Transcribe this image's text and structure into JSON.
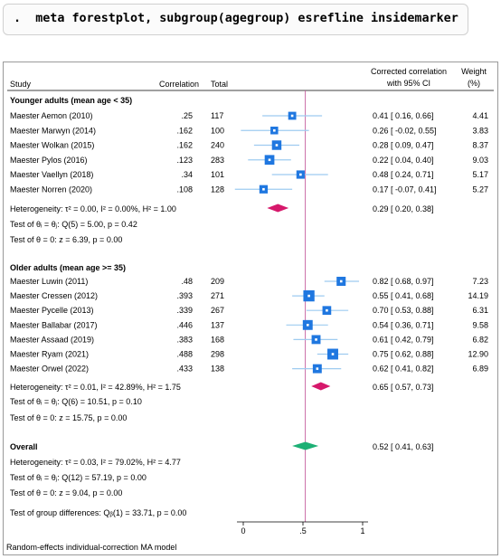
{
  "command": {
    "prompt": ".",
    "text": "meta forestplot, subgroup(agegroup) esrefline insidemarker"
  },
  "header": {
    "study": "Study",
    "correlation": "Correlation",
    "total": "Total",
    "ci_line1": "Corrected correlation",
    "ci_line2": "with 95% CI",
    "weight_line1": "Weight",
    "weight_line2": "(%)"
  },
  "groups": [
    {
      "title": "Younger adults (mean age < 35)",
      "studies": [
        {
          "name": "Maester Aemon (2010)",
          "r": ".25",
          "n": "117",
          "ci": "0.41 [  0.16,  0.66]",
          "weight": "4.41",
          "est": 0.41,
          "lo": 0.16,
          "hi": 0.66,
          "w": 4.41
        },
        {
          "name": "Maester Marwyn (2014)",
          "r": ".162",
          "n": "100",
          "ci": "0.26 [ -0.02,  0.55]",
          "weight": "3.83",
          "est": 0.26,
          "lo": -0.02,
          "hi": 0.55,
          "w": 3.83
        },
        {
          "name": "Maester Wolkan (2015)",
          "r": ".162",
          "n": "240",
          "ci": "0.28 [  0.09,  0.47]",
          "weight": "8.37",
          "est": 0.28,
          "lo": 0.09,
          "hi": 0.47,
          "w": 8.37
        },
        {
          "name": "Maester Pylos (2016)",
          "r": ".123",
          "n": "283",
          "ci": "0.22 [  0.04,  0.40]",
          "weight": "9.03",
          "est": 0.22,
          "lo": 0.04,
          "hi": 0.4,
          "w": 9.03
        },
        {
          "name": "Maester Vaellyn (2018)",
          "r": ".34",
          "n": "101",
          "ci": "0.48 [  0.24,  0.71]",
          "weight": "5.17",
          "est": 0.48,
          "lo": 0.24,
          "hi": 0.71,
          "w": 5.17
        },
        {
          "name": "Maester Norren (2020)",
          "r": ".108",
          "n": "128",
          "ci": "0.17 [ -0.07,  0.41]",
          "weight": "5.27",
          "est": 0.17,
          "lo": -0.07,
          "hi": 0.41,
          "w": 5.27
        }
      ],
      "heterogeneity": "Heterogeneity: τ² = 0.00, I² = 0.00%, H² = 1.00",
      "pooled_ci": "0.29 [  0.20,  0.38]",
      "pooled": {
        "est": 0.29,
        "lo": 0.2,
        "hi": 0.38
      },
      "q_test": "Test of θᵢ = θⱼ: Q(5) = 5.00, p = 0.42",
      "z_test": "Test of θ = 0: z = 6.39, p = 0.00"
    },
    {
      "title": "Older adults (mean age >= 35)",
      "studies": [
        {
          "name": "Maester Luwin (2011)",
          "r": ".48",
          "n": "209",
          "ci": "0.82 [  0.68,  0.97]",
          "weight": "7.23",
          "est": 0.82,
          "lo": 0.68,
          "hi": 0.97,
          "w": 7.23
        },
        {
          "name": "Maester Cressen (2012)",
          "r": ".393",
          "n": "271",
          "ci": "0.55 [  0.41,  0.68]",
          "weight": "14.19",
          "est": 0.55,
          "lo": 0.41,
          "hi": 0.68,
          "w": 14.19
        },
        {
          "name": "Maester Pycelle (2013)",
          "r": ".339",
          "n": "267",
          "ci": "0.70 [  0.53,  0.88]",
          "weight": "6.31",
          "est": 0.7,
          "lo": 0.53,
          "hi": 0.88,
          "w": 6.31
        },
        {
          "name": "Maester Ballabar (2017)",
          "r": ".446",
          "n": "137",
          "ci": "0.54 [  0.36,  0.71]",
          "weight": "9.58",
          "est": 0.54,
          "lo": 0.36,
          "hi": 0.71,
          "w": 9.58
        },
        {
          "name": "Maester Assaad (2019)",
          "r": ".383",
          "n": "168",
          "ci": "0.61 [  0.42,  0.79]",
          "weight": "6.82",
          "est": 0.61,
          "lo": 0.42,
          "hi": 0.79,
          "w": 6.82
        },
        {
          "name": "Maester Ryam (2021)",
          "r": ".488",
          "n": "298",
          "ci": "0.75 [  0.62,  0.88]",
          "weight": "12.90",
          "est": 0.75,
          "lo": 0.62,
          "hi": 0.88,
          "w": 12.9
        },
        {
          "name": "Maester Orwel (2022)",
          "r": ".433",
          "n": "138",
          "ci": "0.62 [  0.41,  0.82]",
          "weight": "6.89",
          "est": 0.62,
          "lo": 0.41,
          "hi": 0.82,
          "w": 6.89
        }
      ],
      "heterogeneity": "Heterogeneity: τ² = 0.01, I² = 42.89%, H² = 1.75",
      "pooled_ci": "0.65 [  0.57,  0.73]",
      "pooled": {
        "est": 0.65,
        "lo": 0.57,
        "hi": 0.73
      },
      "q_test": "Test of θᵢ = θⱼ: Q(6) = 10.51, p = 0.10",
      "z_test": "Test of θ = 0: z = 15.75, p = 0.00"
    }
  ],
  "overall": {
    "title": "Overall",
    "ci": "0.52 [  0.41,  0.63]",
    "est": 0.52,
    "lo": 0.41,
    "hi": 0.63,
    "heterogeneity": "Heterogeneity: τ² = 0.03, I² = 79.02%, H² = 4.77",
    "q_test": "Test of θᵢ = θⱼ: Q(12) = 57.19, p = 0.00",
    "z_test": "Test of θ = 0: z = 9.04, p = 0.00"
  },
  "group_diff": "Test of group differences: Qᵦ(1) = 33.71, p = 0.00",
  "axis": {
    "ticks": [
      "0",
      ".5",
      "1"
    ],
    "tick_values": [
      0,
      0.5,
      1
    ],
    "refline": 0.52
  },
  "footnote": "Random-effects individual-correction MA model",
  "colors": {
    "study_marker": "#1f77e0",
    "study_marker_center": "#ffffff",
    "ci_line": "#9ecbf0",
    "subgroup_diamond": "#d6186b",
    "overall_diamond": "#1db075",
    "refline": "#c25a9c",
    "header_rule": "#000000"
  },
  "chart_data": {
    "type": "forest",
    "x_axis_ticks": [
      0,
      0.5,
      1
    ],
    "reference_line": 0.52,
    "series": [
      {
        "name": "Younger adults (mean age < 35)",
        "studies": [
          "Maester Aemon (2010)",
          "Maester Marwyn (2014)",
          "Maester Wolkan (2015)",
          "Maester Pylos (2016)",
          "Maester Vaellyn (2018)",
          "Maester Norren (2020)"
        ],
        "estimates": [
          0.41,
          0.26,
          0.28,
          0.22,
          0.48,
          0.17
        ],
        "ci_lower": [
          0.16,
          -0.02,
          0.09,
          0.04,
          0.24,
          -0.07
        ],
        "ci_upper": [
          0.66,
          0.55,
          0.47,
          0.4,
          0.71,
          0.41
        ],
        "weights": [
          4.41,
          3.83,
          8.37,
          9.03,
          5.17,
          5.27
        ],
        "pooled": [
          0.29,
          0.2,
          0.38
        ]
      },
      {
        "name": "Older adults (mean age >= 35)",
        "studies": [
          "Maester Luwin (2011)",
          "Maester Cressen (2012)",
          "Maester Pycelle (2013)",
          "Maester Ballabar (2017)",
          "Maester Assaad (2019)",
          "Maester Ryam (2021)",
          "Maester Orwel (2022)"
        ],
        "estimates": [
          0.82,
          0.55,
          0.7,
          0.54,
          0.61,
          0.75,
          0.62
        ],
        "ci_lower": [
          0.68,
          0.41,
          0.53,
          0.36,
          0.42,
          0.62,
          0.41
        ],
        "ci_upper": [
          0.97,
          0.68,
          0.88,
          0.71,
          0.79,
          0.88,
          0.82
        ],
        "weights": [
          7.23,
          14.19,
          6.31,
          9.58,
          6.82,
          12.9,
          6.89
        ],
        "pooled": [
          0.65,
          0.57,
          0.73
        ]
      }
    ],
    "overall": [
      0.52,
      0.41,
      0.63
    ]
  }
}
